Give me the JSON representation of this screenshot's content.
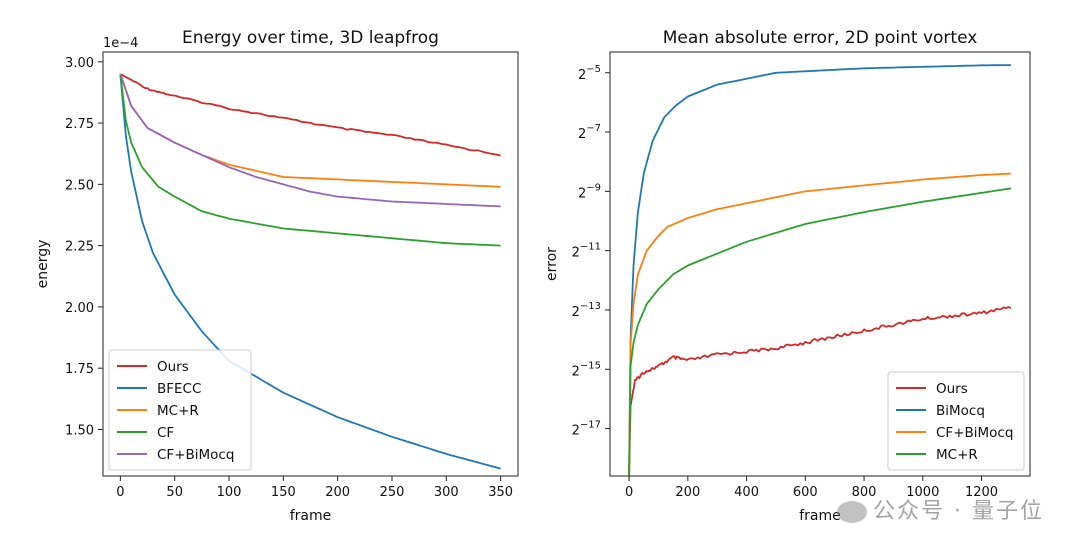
{
  "chart_data": [
    {
      "type": "line",
      "title": "Energy over time, 3D leapfrog",
      "xlabel": "frame",
      "ylabel": "energy",
      "offset_text": "1e−4",
      "xlim": [
        -16,
        366
      ],
      "ylim": [
        1.31,
        3.04
      ],
      "xticks": [
        0,
        50,
        100,
        150,
        200,
        250,
        300,
        350
      ],
      "yticks": [
        1.5,
        1.75,
        2.0,
        2.25,
        2.5,
        2.75,
        3.0
      ],
      "ytick_labels": [
        "1.50",
        "1.75",
        "2.00",
        "2.25",
        "2.50",
        "2.75",
        "3.00"
      ],
      "grid": false,
      "legend_position": "lower-left",
      "series": [
        {
          "name": "Ours",
          "color": "#d62728",
          "x": [
            0,
            25,
            50,
            100,
            150,
            200,
            250,
            300,
            350
          ],
          "y": [
            2.95,
            2.89,
            2.86,
            2.81,
            2.77,
            2.73,
            2.7,
            2.66,
            2.62
          ]
        },
        {
          "name": "BFECC",
          "color": "#1f77b4",
          "x": [
            0,
            5,
            10,
            20,
            30,
            50,
            75,
            100,
            150,
            200,
            250,
            300,
            350
          ],
          "y": [
            2.95,
            2.7,
            2.55,
            2.35,
            2.22,
            2.05,
            1.9,
            1.78,
            1.65,
            1.55,
            1.47,
            1.4,
            1.34
          ]
        },
        {
          "name": "MC+R",
          "color": "#ff7f0e",
          "x": [
            0,
            10,
            25,
            50,
            75,
            100,
            150,
            200,
            250,
            300,
            350
          ],
          "y": [
            2.95,
            2.82,
            2.73,
            2.67,
            2.62,
            2.58,
            2.53,
            2.52,
            2.51,
            2.5,
            2.49
          ]
        },
        {
          "name": "CF",
          "color": "#2ca02c",
          "x": [
            0,
            5,
            10,
            20,
            35,
            50,
            75,
            100,
            150,
            200,
            250,
            300,
            350
          ],
          "y": [
            2.95,
            2.76,
            2.67,
            2.57,
            2.49,
            2.45,
            2.39,
            2.36,
            2.32,
            2.3,
            2.28,
            2.26,
            2.25
          ]
        },
        {
          "name": "CF+BiMocq",
          "color": "#9467bd",
          "x": [
            0,
            10,
            25,
            50,
            75,
            100,
            125,
            150,
            175,
            200,
            250,
            300,
            350
          ],
          "y": [
            2.95,
            2.82,
            2.73,
            2.67,
            2.62,
            2.57,
            2.53,
            2.5,
            2.47,
            2.45,
            2.43,
            2.42,
            2.41
          ]
        }
      ]
    },
    {
      "type": "line",
      "title": "Mean absolute error, 2D point vortex",
      "xlabel": "frame",
      "ylabel": "error",
      "y_scale": "log2",
      "xlim": [
        -65,
        1365
      ],
      "ylim_log2": [
        -18.6,
        -4.3
      ],
      "xticks": [
        0,
        200,
        400,
        600,
        800,
        1000,
        1200
      ],
      "yticks_log2": [
        -17,
        -15,
        -13,
        -11,
        -9,
        -7,
        -5
      ],
      "ytick_labels": [
        "2^−17",
        "2^−15",
        "2^−13",
        "2^−11",
        "2^−9",
        "2^−7",
        "2^−5"
      ],
      "grid": false,
      "legend_position": "lower-right",
      "series": [
        {
          "name": "Ours",
          "color": "#d62728",
          "x": [
            0,
            5,
            20,
            50,
            100,
            150,
            200,
            300,
            400,
            500,
            600,
            700,
            800,
            900,
            1000,
            1100,
            1200,
            1300
          ],
          "log2_y": [
            -18.6,
            -16.2,
            -15.4,
            -15.1,
            -14.9,
            -14.6,
            -14.7,
            -14.5,
            -14.4,
            -14.3,
            -14.1,
            -13.9,
            -13.7,
            -13.5,
            -13.3,
            -13.2,
            -13.1,
            -12.9
          ]
        },
        {
          "name": "BiMocq",
          "color": "#1f77b4",
          "x": [
            0,
            5,
            15,
            30,
            50,
            80,
            120,
            160,
            200,
            300,
            400,
            500,
            600,
            800,
            1000,
            1200,
            1300
          ],
          "log2_y": [
            -18.6,
            -14.0,
            -11.5,
            -9.7,
            -8.4,
            -7.3,
            -6.5,
            -6.1,
            -5.8,
            -5.4,
            -5.2,
            -5.0,
            -4.95,
            -4.85,
            -4.8,
            -4.75,
            -4.74
          ]
        },
        {
          "name": "CF+BiMocq",
          "color": "#ff7f0e",
          "x": [
            0,
            5,
            15,
            30,
            60,
            100,
            130,
            200,
            300,
            400,
            600,
            800,
            1000,
            1200,
            1300
          ],
          "log2_y": [
            -18.6,
            -14.2,
            -12.8,
            -11.8,
            -11.0,
            -10.5,
            -10.2,
            -9.9,
            -9.6,
            -9.4,
            -9.0,
            -8.8,
            -8.6,
            -8.45,
            -8.4
          ]
        },
        {
          "name": "MC+R",
          "color": "#2ca02c",
          "x": [
            0,
            5,
            15,
            30,
            60,
            100,
            150,
            200,
            300,
            400,
            600,
            800,
            1000,
            1200,
            1300
          ],
          "log2_y": [
            -18.6,
            -14.9,
            -14.1,
            -13.5,
            -12.8,
            -12.3,
            -11.8,
            -11.5,
            -11.1,
            -10.7,
            -10.1,
            -9.7,
            -9.35,
            -9.05,
            -8.9
          ]
        }
      ]
    }
  ],
  "watermark": {
    "text": "公众号 · 量子位"
  }
}
